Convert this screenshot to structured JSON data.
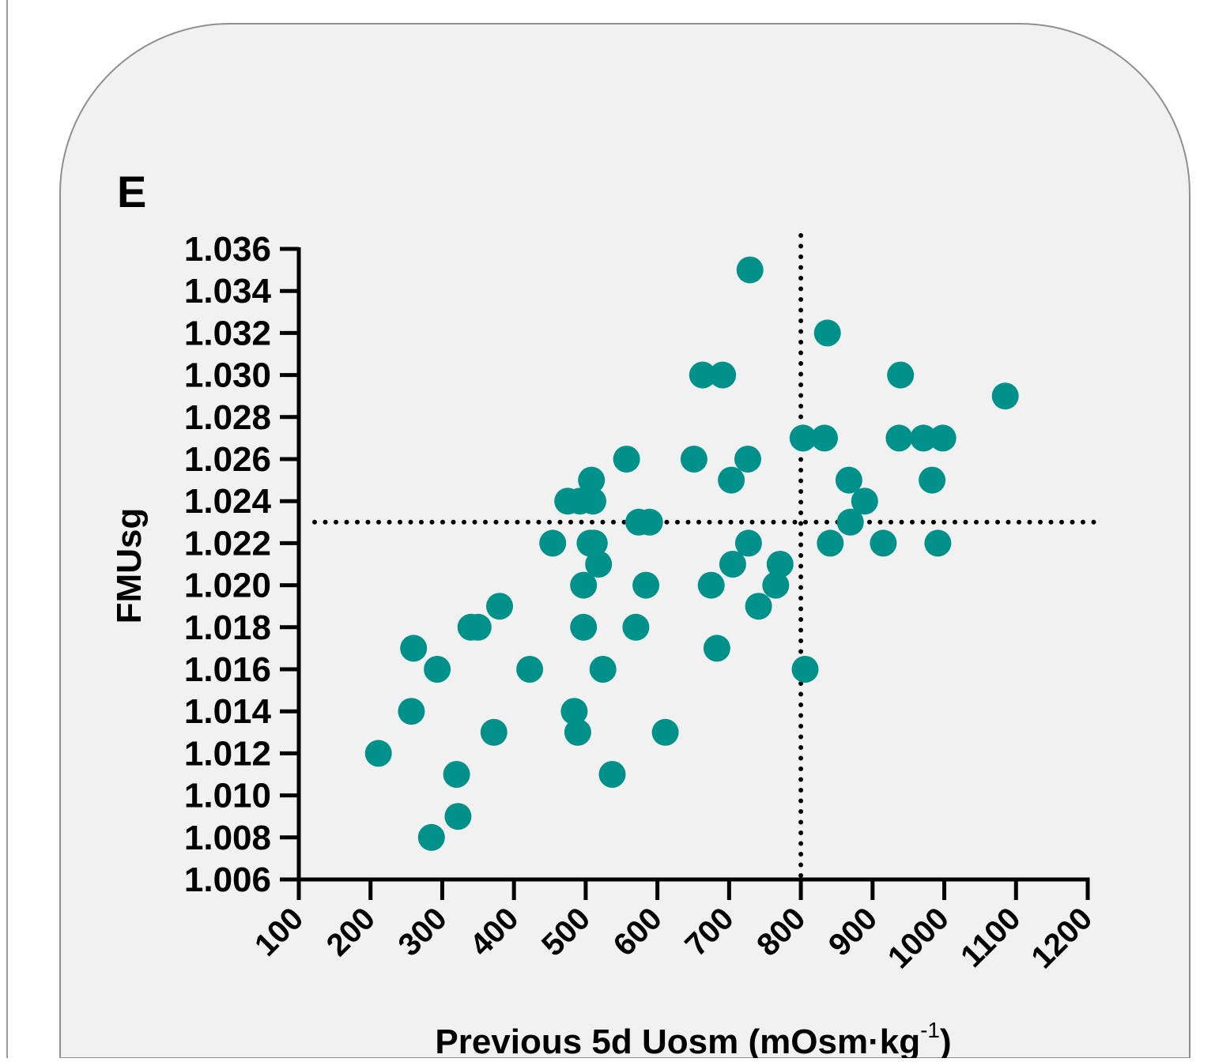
{
  "panel": {
    "letter": "E",
    "background": "#f1f1f1",
    "border": "#8f8f8f"
  },
  "chart_data": {
    "type": "scatter",
    "title": "",
    "xlabel": "Previous 5d Uosm (mOsm·kg",
    "xlabel_sup": "-1",
    "xlabel_close": ")",
    "ylabel": "FMUsg",
    "xlim": [
      100,
      1200
    ],
    "ylim": [
      1.006,
      1.036
    ],
    "x_ticks": [
      100,
      200,
      300,
      400,
      500,
      600,
      700,
      800,
      900,
      1000,
      1100,
      1200
    ],
    "y_ticks": [
      "1.006",
      "1.008",
      "1.010",
      "1.012",
      "1.014",
      "1.016",
      "1.018",
      "1.020",
      "1.022",
      "1.024",
      "1.026",
      "1.028",
      "1.030",
      "1.032",
      "1.034",
      "1.036"
    ],
    "point_color": "#00918a",
    "grid": false,
    "reference_lines": {
      "x": 800,
      "y": 1.023,
      "style": "dotted"
    },
    "points": [
      [
        211,
        1.012
      ],
      [
        257,
        1.014
      ],
      [
        260,
        1.017
      ],
      [
        285,
        1.008
      ],
      [
        293,
        1.016
      ],
      [
        320,
        1.011
      ],
      [
        322,
        1.009
      ],
      [
        340,
        1.018
      ],
      [
        350,
        1.018
      ],
      [
        372,
        1.013
      ],
      [
        380,
        1.019
      ],
      [
        422,
        1.016
      ],
      [
        454,
        1.022
      ],
      [
        475,
        1.024
      ],
      [
        484,
        1.014
      ],
      [
        489,
        1.013
      ],
      [
        492,
        1.024
      ],
      [
        497,
        1.018
      ],
      [
        497,
        1.02
      ],
      [
        506,
        1.022
      ],
      [
        508,
        1.025
      ],
      [
        510,
        1.024
      ],
      [
        512,
        1.022
      ],
      [
        518,
        1.021
      ],
      [
        524,
        1.016
      ],
      [
        537,
        1.011
      ],
      [
        557,
        1.026
      ],
      [
        570,
        1.018
      ],
      [
        574,
        1.023
      ],
      [
        584,
        1.02
      ],
      [
        589,
        1.023
      ],
      [
        611,
        1.013
      ],
      [
        651,
        1.026
      ],
      [
        663,
        1.03
      ],
      [
        675,
        1.02
      ],
      [
        683,
        1.017
      ],
      [
        691,
        1.03
      ],
      [
        703,
        1.025
      ],
      [
        705,
        1.021
      ],
      [
        726,
        1.026
      ],
      [
        727,
        1.022
      ],
      [
        729,
        1.035
      ],
      [
        741,
        1.019
      ],
      [
        765,
        1.02
      ],
      [
        771,
        1.021
      ],
      [
        803,
        1.027
      ],
      [
        806,
        1.016
      ],
      [
        833,
        1.027
      ],
      [
        837,
        1.032
      ],
      [
        841,
        1.022
      ],
      [
        867,
        1.025
      ],
      [
        869,
        1.023
      ],
      [
        889,
        1.024
      ],
      [
        915,
        1.022
      ],
      [
        937,
        1.027
      ],
      [
        939,
        1.03
      ],
      [
        971,
        1.027
      ],
      [
        983,
        1.025
      ],
      [
        991,
        1.022
      ],
      [
        998,
        1.027
      ],
      [
        1085,
        1.029
      ]
    ]
  }
}
